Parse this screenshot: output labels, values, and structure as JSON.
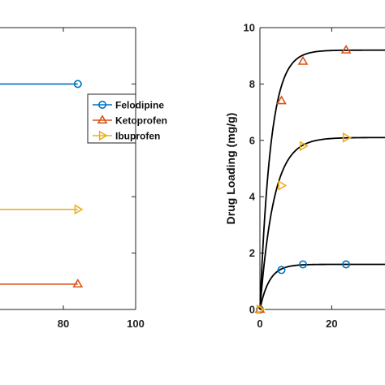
{
  "chart_data": [
    {
      "type": "line",
      "xlabel": "",
      "ylabel": "",
      "xlim": [
        0,
        100
      ],
      "xticks": [
        80,
        100
      ],
      "xtick_labels": [
        "80",
        "100"
      ],
      "legend": {
        "placement": "right"
      },
      "series": [
        {
          "name": "Felodipine",
          "color": "#0072BD",
          "marker": "circle",
          "points": [
            [
              -10,
              0.8
            ],
            [
              84,
              0.8
            ]
          ]
        },
        {
          "name": "Ketoprofen",
          "color": "#D95319",
          "marker": "triangle-up",
          "points": [
            [
              -10,
              0.09
            ],
            [
              84,
              0.09
            ]
          ]
        },
        {
          "name": "Ibuprofen",
          "color": "#EDB120",
          "marker": "triangle-right",
          "points": [
            [
              -10,
              0.355
            ],
            [
              84,
              0.355
            ]
          ]
        }
      ]
    },
    {
      "type": "scatter",
      "xlabel": "",
      "ylabel": "Drug Loading (mg/g)",
      "xlim": [
        0,
        45
      ],
      "ylim": [
        0,
        10
      ],
      "xticks": [
        0,
        20
      ],
      "xtick_labels": [
        "0",
        "20"
      ],
      "yticks": [
        0,
        2,
        4,
        6,
        8,
        10
      ],
      "ytick_labels": [
        "0",
        "2",
        "4",
        "6",
        "8",
        "10"
      ],
      "series": [
        {
          "name": "Felodipine",
          "color": "#0072BD",
          "marker": "circle",
          "x": [
            0,
            6,
            12,
            24
          ],
          "y": [
            0,
            1.4,
            1.6,
            1.6
          ],
          "fit": {
            "model": "first-order",
            "qe": 1.6,
            "k": 0.38
          }
        },
        {
          "name": "Ketoprofen",
          "color": "#D95319",
          "marker": "triangle-up",
          "x": [
            0,
            6,
            12,
            24
          ],
          "y": [
            0,
            7.4,
            8.8,
            9.2
          ],
          "fit": {
            "model": "first-order",
            "qe": 9.2,
            "k": 0.33
          }
        },
        {
          "name": "Ibuprofen",
          "color": "#EDB120",
          "marker": "triangle-right",
          "x": [
            0,
            6,
            12,
            24
          ],
          "y": [
            0,
            4.4,
            5.8,
            6.1
          ],
          "fit": {
            "model": "first-order",
            "qe": 6.1,
            "k": 0.26
          }
        }
      ]
    }
  ]
}
